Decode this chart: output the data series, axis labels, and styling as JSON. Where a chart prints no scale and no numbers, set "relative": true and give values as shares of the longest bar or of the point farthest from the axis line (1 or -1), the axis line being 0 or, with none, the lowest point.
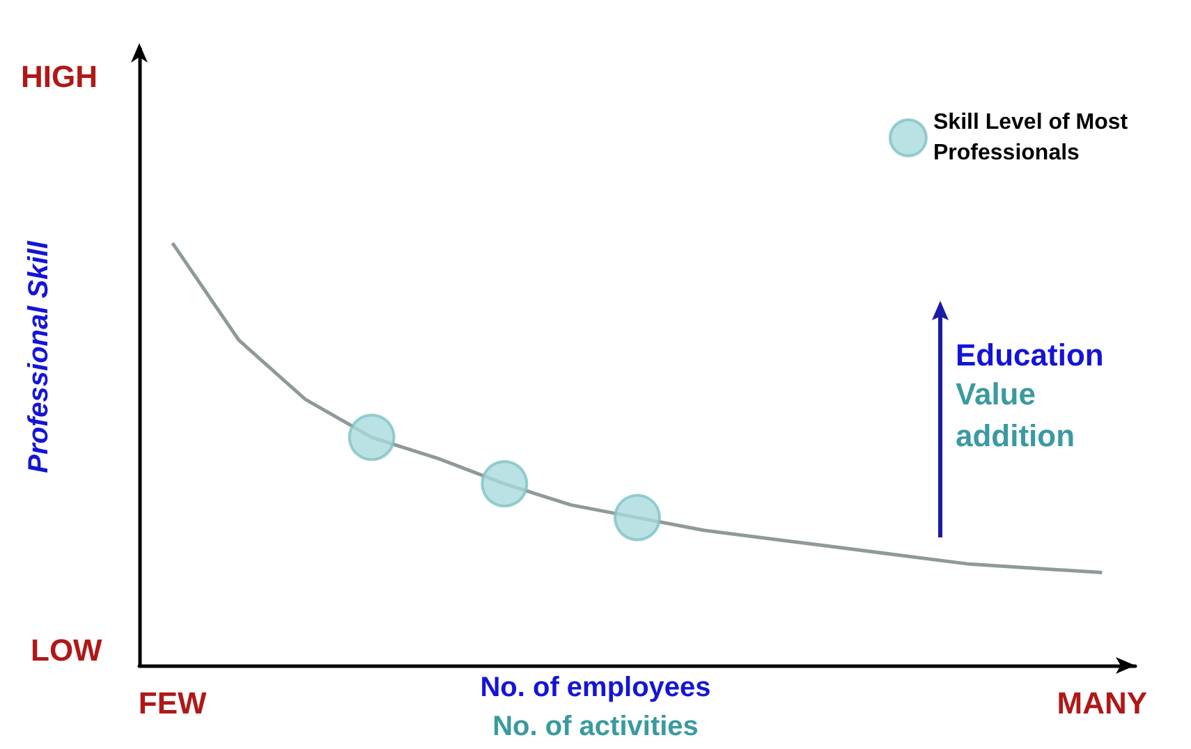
{
  "chart_data": {
    "type": "line",
    "relative": true,
    "xlabel": "No. of employees\nNo. of activities",
    "ylabel": "Professional Skill",
    "categories": [
      "FEW",
      null,
      null,
      null,
      null,
      null,
      null,
      null,
      null,
      null,
      null,
      null,
      null,
      null,
      "MANY"
    ],
    "series": [
      {
        "color": "#8f9a98",
        "marker": "none",
        "values": [
          1.0,
          0.77,
          0.63,
          0.54,
          0.49,
          0.43,
          0.38,
          0.35,
          0.32,
          0.3,
          0.28,
          0.26,
          0.24,
          0.23,
          0.22
        ]
      },
      {
        "type": "scatter",
        "name": "Skill Level of Most Professionals",
        "color": "#a9d9dc",
        "marker": "circle",
        "values": [
          null,
          null,
          null,
          0.54,
          null,
          0.43,
          null,
          0.35,
          null,
          null,
          null,
          null,
          null,
          null,
          null
        ]
      }
    ],
    "annotations": [
      "HIGH",
      "LOW",
      "Education",
      "Value addition"
    ],
    "legend": "top right",
    "grid": false
  }
}
